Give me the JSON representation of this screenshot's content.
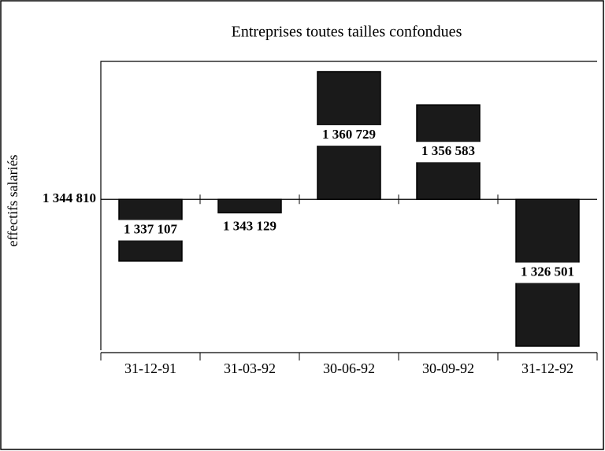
{
  "chart_data": {
    "type": "bar",
    "title": "Entreprises toutes tailles confondues",
    "ylabel": "effectifs salariés",
    "categories": [
      "31-12-91",
      "31-03-92",
      "30-06-92",
      "30-09-92",
      "31-12-92"
    ],
    "values": [
      1337107,
      1343129,
      1360729,
      1356583,
      1326501
    ],
    "value_labels": [
      "1 337 107",
      "1 343 129",
      "1 360 729",
      "1 356 583",
      "1 326 501"
    ],
    "baseline": 1344810,
    "color": "#1a1a1a",
    "ylim": [
      1326000,
      1362000
    ],
    "yticks": [
      {
        "value": 1344810,
        "label": "1 344 810"
      }
    ]
  }
}
